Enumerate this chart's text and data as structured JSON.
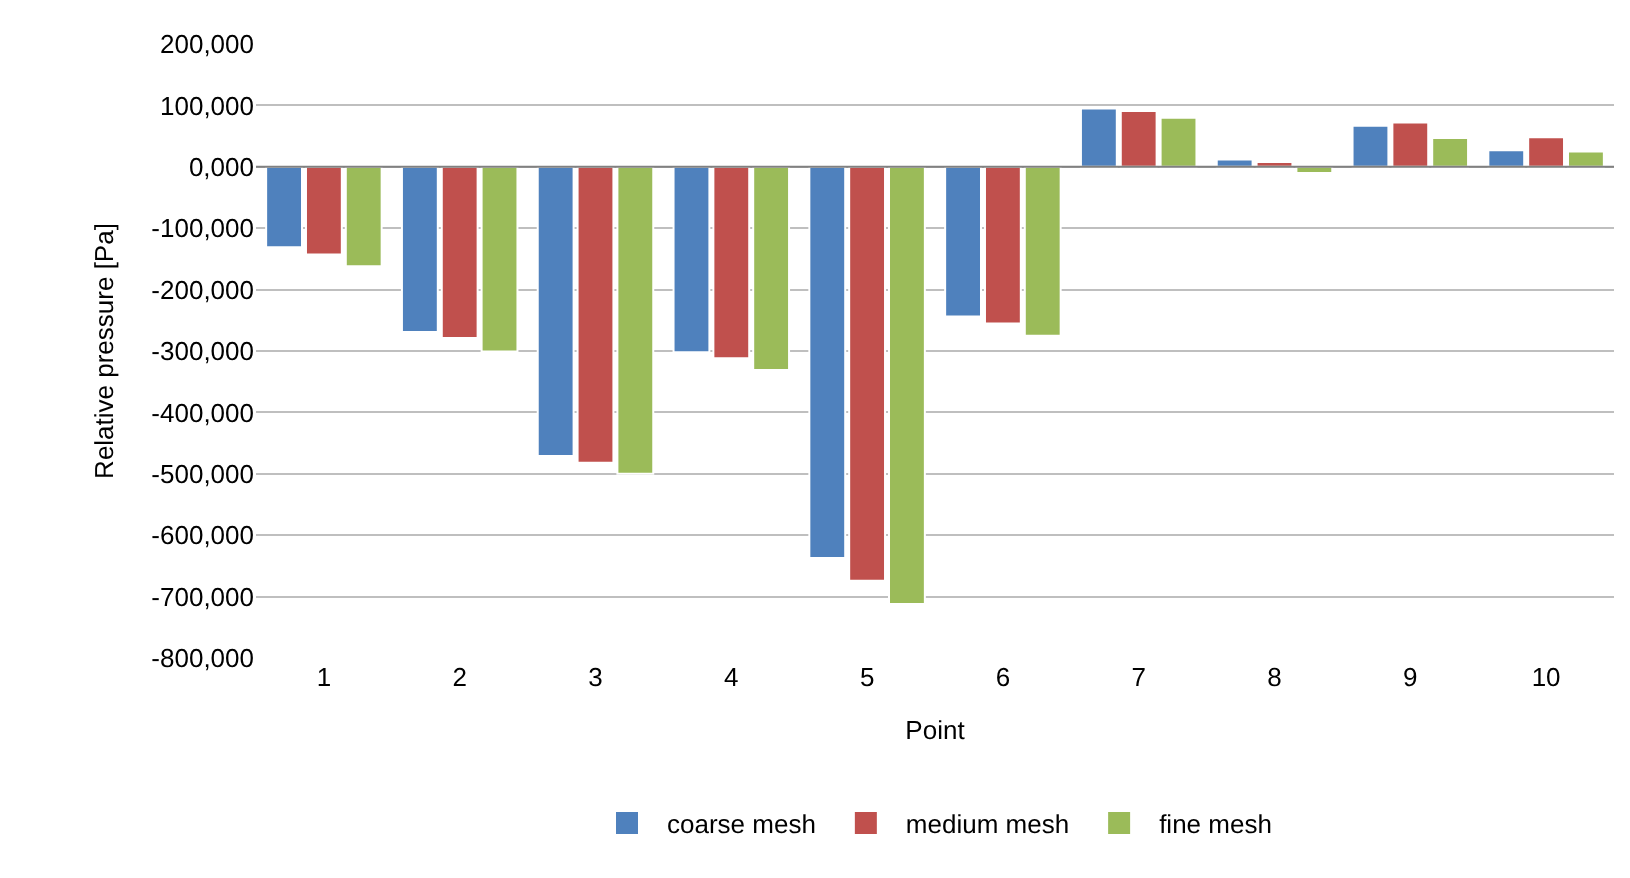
{
  "chart_data": {
    "type": "bar",
    "xlabel": "Point",
    "ylabel": "Relative pressure [Pa]",
    "categories": [
      "1",
      "2",
      "3",
      "4",
      "5",
      "6",
      "7",
      "8",
      "9",
      "10"
    ],
    "series": [
      {
        "name": "coarse mesh",
        "color": "#4f81bd",
        "values": [
          -131000,
          -269000,
          -471000,
          -302000,
          -637000,
          -244000,
          95000,
          12000,
          67000,
          27000
        ]
      },
      {
        "name": "medium mesh",
        "color": "#c0504d",
        "values": [
          -143000,
          -279000,
          -482000,
          -312000,
          -674000,
          -255000,
          91000,
          8000,
          72000,
          48000
        ]
      },
      {
        "name": "fine mesh",
        "color": "#9bbb59",
        "values": [
          -162000,
          -301000,
          -500000,
          -331000,
          -712000,
          -275000,
          80000,
          -10000,
          47000,
          25000
        ]
      }
    ],
    "ylim": [
      -800000,
      200000
    ],
    "yticks": [
      {
        "value": -800000,
        "label": "-800,000"
      },
      {
        "value": -700000,
        "label": "-700,000"
      },
      {
        "value": -600000,
        "label": "-600,000"
      },
      {
        "value": -500000,
        "label": "-500,000"
      },
      {
        "value": -400000,
        "label": "-400,000"
      },
      {
        "value": -300000,
        "label": "-300,000"
      },
      {
        "value": -200000,
        "label": "-200,000"
      },
      {
        "value": -100000,
        "label": "-100,000"
      },
      {
        "value": 0,
        "label": "0,000"
      },
      {
        "value": 100000,
        "label": "100,000"
      },
      {
        "value": 200000,
        "label": "200,000"
      }
    ],
    "grid": "y",
    "legend": "bottom"
  }
}
